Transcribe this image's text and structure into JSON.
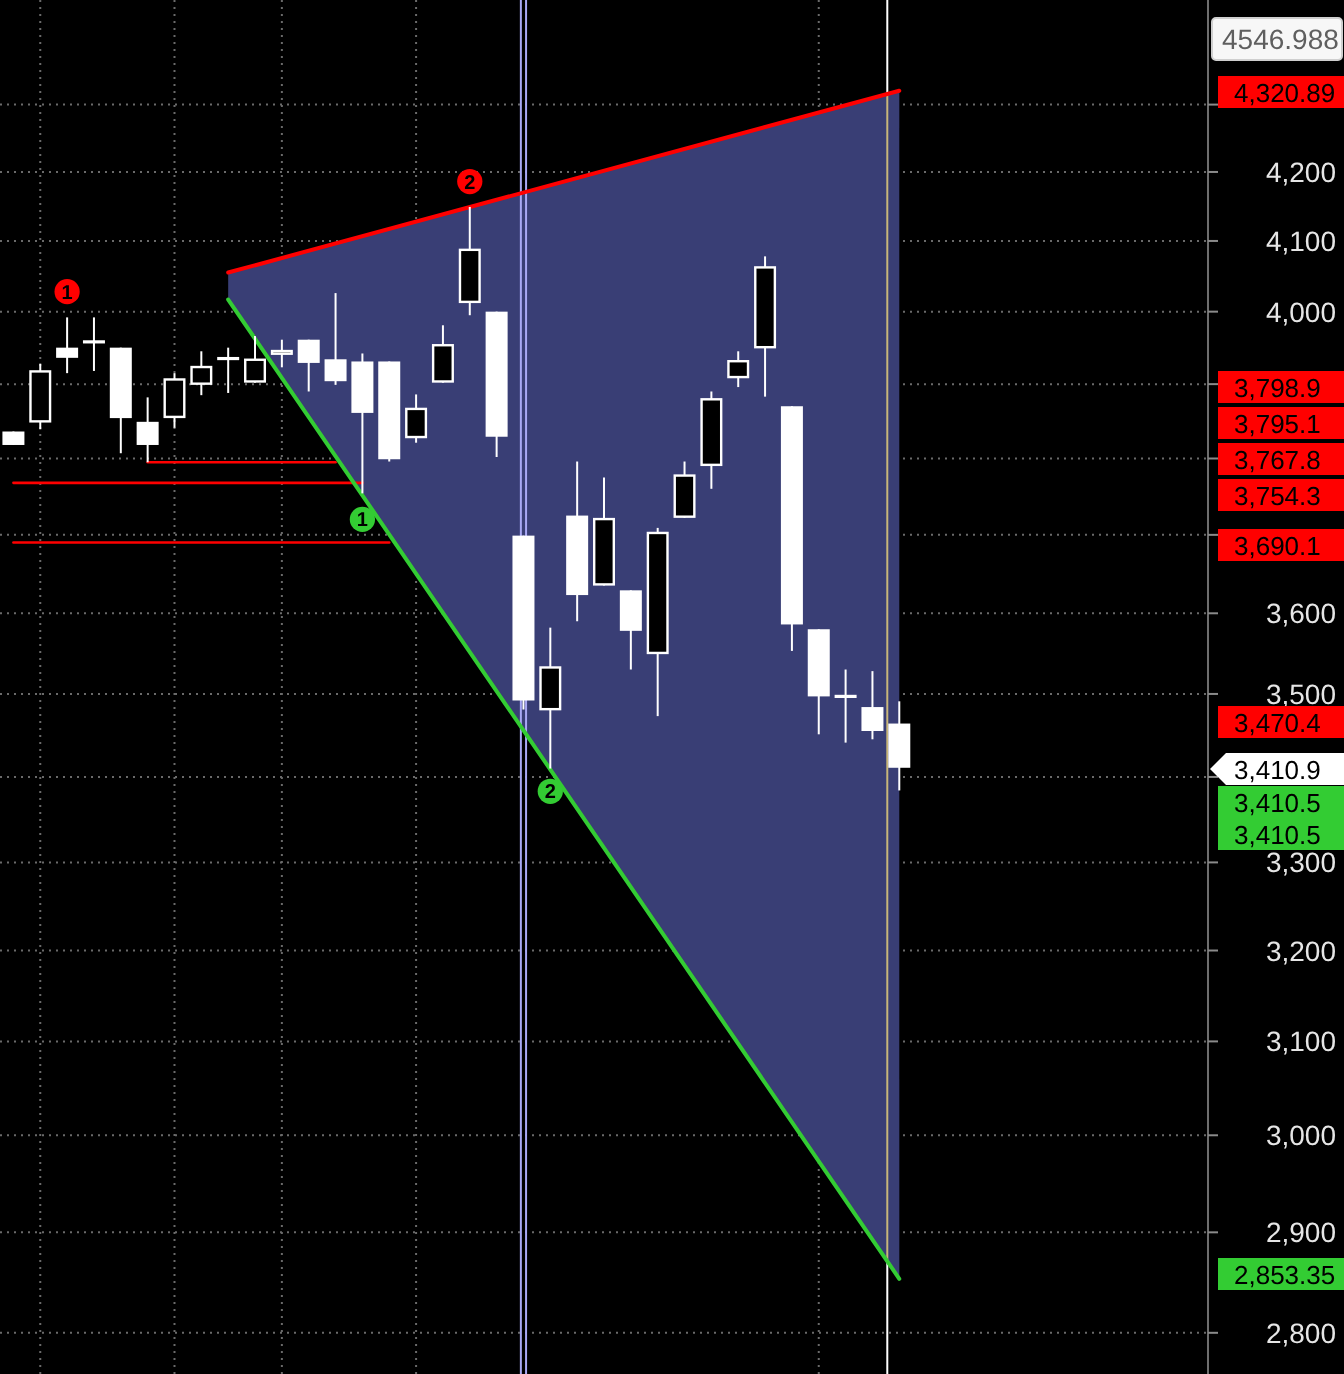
{
  "chart_data": {
    "type": "candlestick",
    "color": "#ffffff",
    "categories": [
      null,
      null,
      null,
      null,
      null,
      null,
      null,
      null,
      null,
      null,
      null,
      null,
      null,
      null,
      null,
      null,
      null,
      null,
      null,
      null,
      null,
      null,
      null,
      null,
      null,
      null,
      null,
      null,
      null,
      null,
      null,
      null,
      null,
      null,
      null,
      null,
      null,
      null,
      null,
      null,
      null,
      null,
      null,
      null,
      null
    ],
    "ohlc": [
      [
        3836,
        3836,
        3818,
        3818
      ],
      [
        3848,
        3928,
        3839,
        3919
      ],
      [
        3950,
        3992,
        3915,
        3936
      ],
      [
        3958,
        3992,
        3918,
        3958
      ],
      [
        3950,
        3950,
        3807,
        3854
      ],
      [
        3849,
        3882,
        3795,
        3818
      ],
      [
        3854,
        3915,
        3841,
        3908
      ],
      [
        3899,
        3945,
        3885,
        3925
      ],
      [
        3935,
        3950,
        3888,
        3935
      ],
      [
        3902,
        3966,
        3902,
        3935
      ],
      [
        3940,
        3961,
        3923,
        3947
      ],
      [
        3961,
        3961,
        3890,
        3929
      ],
      [
        3934,
        4026,
        3899,
        3904
      ],
      [
        3931,
        3942,
        3754,
        3861
      ],
      [
        3931,
        3931,
        3796,
        3799
      ],
      [
        3827,
        3886,
        3821,
        3868
      ],
      [
        3902,
        3981,
        3902,
        3955
      ],
      [
        4012,
        4149,
        3995,
        4089
      ],
      [
        4000,
        4000,
        3802,
        3829
      ],
      [
        3699,
        3699,
        3481,
        3492
      ],
      [
        3480,
        3582,
        3410,
        3534
      ],
      [
        3725,
        3796,
        3590,
        3623
      ],
      [
        3635,
        3775,
        3635,
        3722
      ],
      [
        3629,
        3629,
        3530,
        3578
      ],
      [
        3549,
        3709,
        3473,
        3704
      ],
      [
        3722,
        3796,
        3722,
        3779
      ],
      [
        3790,
        3890,
        3760,
        3881
      ],
      [
        3908,
        3945,
        3896,
        3933
      ],
      [
        3949,
        4078,
        3883,
        4064
      ],
      [
        3870,
        3870,
        3553,
        3586
      ],
      [
        3580,
        3580,
        3451,
        3497
      ],
      [
        3497,
        3530,
        3441,
        3497
      ],
      [
        3484,
        3528,
        3445,
        3455
      ],
      [
        3464,
        3491,
        3384,
        3410.9
      ],
      null,
      null,
      null,
      null,
      null,
      null,
      null,
      null,
      null,
      null,
      null
    ],
    "series": [
      {
        "type": "line",
        "color": "#ff0000",
        "values": [
          null,
          null,
          null,
          null,
          null,
          null,
          null,
          null,
          4055,
          null,
          null,
          null,
          null,
          null,
          null,
          null,
          null,
          null,
          null,
          null,
          null,
          null,
          null,
          null,
          null,
          null,
          null,
          null,
          null,
          null,
          null,
          null,
          null,
          4320.89,
          null,
          null,
          null,
          null,
          null,
          null,
          null,
          null,
          null,
          null,
          null
        ]
      },
      {
        "type": "line",
        "color": "#33cc33",
        "values": [
          null,
          null,
          null,
          null,
          null,
          null,
          null,
          null,
          4017,
          null,
          null,
          null,
          null,
          null,
          null,
          null,
          null,
          null,
          null,
          null,
          null,
          null,
          null,
          null,
          null,
          null,
          null,
          null,
          null,
          null,
          null,
          null,
          null,
          2853.35,
          null,
          null,
          null,
          null,
          null,
          null,
          null,
          null,
          null,
          null,
          null
        ]
      },
      {
        "type": "line",
        "color": "#ff0000",
        "values": [
          null,
          null,
          null,
          null,
          null,
          3795.1,
          null,
          null,
          null,
          null,
          null,
          null,
          3795.1,
          null,
          null,
          null,
          null,
          null,
          null,
          null,
          null,
          null,
          null,
          null,
          null,
          null,
          null,
          null,
          null,
          null,
          null,
          null,
          null,
          null,
          null,
          null,
          null,
          null,
          null,
          null,
          null,
          null,
          null,
          null,
          null
        ]
      },
      {
        "type": "line",
        "color": "#ff0000",
        "values": [
          3767.8,
          null,
          null,
          null,
          null,
          null,
          null,
          null,
          null,
          null,
          null,
          null,
          null,
          3767.8,
          null,
          null,
          null,
          null,
          null,
          null,
          null,
          null,
          null,
          null,
          null,
          null,
          null,
          null,
          null,
          null,
          null,
          null,
          null,
          null,
          null,
          null,
          null,
          null,
          null,
          null,
          null,
          null,
          null,
          null,
          null
        ]
      },
      {
        "type": "line",
        "color": "#ff0000",
        "values": [
          3690.1,
          null,
          null,
          null,
          null,
          null,
          null,
          null,
          null,
          null,
          null,
          null,
          null,
          null,
          3690.1,
          null,
          null,
          null,
          null,
          null,
          null,
          null,
          null,
          null,
          null,
          null,
          null,
          null,
          null,
          null,
          null,
          null,
          null,
          null,
          null,
          null,
          null,
          null,
          null,
          null,
          null,
          null,
          null,
          null,
          null
        ]
      },
      {
        "type": "scatter",
        "name": "1",
        "color": "#ff0000",
        "marker": "circle",
        "values": [
          null,
          null,
          4028,
          null,
          null,
          null,
          null,
          null,
          null,
          null,
          null,
          null,
          null,
          null,
          null,
          null,
          null,
          null,
          null,
          null,
          null,
          null,
          null,
          null,
          null,
          null,
          null,
          null,
          null,
          null,
          null,
          null,
          null,
          null,
          null,
          null,
          null,
          null,
          null,
          null,
          null,
          null,
          null,
          null,
          null
        ]
      },
      {
        "type": "scatter",
        "name": "2",
        "color": "#ff0000",
        "marker": "circle",
        "values": [
          null,
          null,
          null,
          null,
          null,
          null,
          null,
          null,
          null,
          null,
          null,
          null,
          null,
          null,
          null,
          null,
          null,
          4186,
          null,
          null,
          null,
          null,
          null,
          null,
          null,
          null,
          null,
          null,
          null,
          null,
          null,
          null,
          null,
          null,
          null,
          null,
          null,
          null,
          null,
          null,
          null,
          null,
          null,
          null,
          null
        ]
      },
      {
        "type": "scatter",
        "name": "1",
        "color": "#33cc33",
        "marker": "circle",
        "values": [
          null,
          null,
          null,
          null,
          null,
          null,
          null,
          null,
          null,
          null,
          null,
          null,
          null,
          3720,
          null,
          null,
          null,
          null,
          null,
          null,
          null,
          null,
          null,
          null,
          null,
          null,
          null,
          null,
          null,
          null,
          null,
          null,
          null,
          null,
          null,
          null,
          null,
          null,
          null,
          null,
          null,
          null,
          null,
          null,
          null
        ]
      },
      {
        "type": "scatter",
        "name": "2",
        "color": "#33cc33",
        "marker": "circle",
        "values": [
          null,
          null,
          null,
          null,
          null,
          null,
          null,
          null,
          null,
          null,
          null,
          null,
          null,
          null,
          null,
          null,
          null,
          null,
          null,
          null,
          3383,
          null,
          null,
          null,
          null,
          null,
          null,
          null,
          null,
          null,
          null,
          null,
          null,
          null,
          null,
          null,
          null,
          null,
          null,
          null,
          null,
          null,
          null,
          null,
          null
        ]
      }
    ],
    "ylim": [
      2760,
      4460
    ],
    "log": true,
    "yticks": [
      {
        "value": 2800,
        "label": "2,800"
      },
      {
        "value": 2900,
        "label": "2,900"
      },
      {
        "value": 3000,
        "label": "3,000"
      },
      {
        "value": 3100,
        "label": "3,100"
      },
      {
        "value": 3200,
        "label": "3,200"
      },
      {
        "value": 3300,
        "label": "3,300"
      },
      {
        "value": 3400,
        "label": null
      },
      {
        "value": 3500,
        "label": "3,500"
      },
      {
        "value": 3600,
        "label": "3,600"
      },
      {
        "value": 3700,
        "label": null
      },
      {
        "value": 3800,
        "label": null
      },
      {
        "value": 3900,
        "label": null
      },
      {
        "value": 4000,
        "label": "4,000"
      },
      {
        "value": 4100,
        "label": "4,100"
      },
      {
        "value": 4200,
        "label": "4,200"
      },
      {
        "value": 4300,
        "label": null
      }
    ],
    "grid": true,
    "tick_labels": "y",
    "annotations": [
      "4546.988",
      "4,320.89",
      "3,798.9",
      "3,795.1",
      "3,767.8",
      "3,754.3",
      "3,690.1",
      "3,470.4",
      "3,410.9",
      "3,410.5",
      "3,410.5",
      "2,853.35"
    ]
  }
}
